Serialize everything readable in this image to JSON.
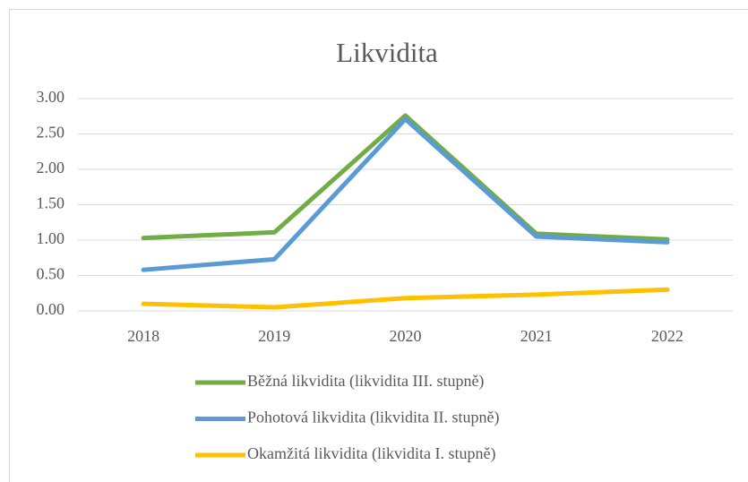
{
  "chart_data": {
    "type": "line",
    "title": "Likvidita",
    "categories": [
      "2018",
      "2019",
      "2020",
      "2021",
      "2022"
    ],
    "series": [
      {
        "name": "Běžná likvidita (likvidita III. stupně)",
        "color": "#70ad47",
        "values": [
          1.03,
          1.11,
          2.76,
          1.09,
          1.01
        ]
      },
      {
        "name": "Pohotová likvidita (likvidita II. stupně)",
        "color": "#5b9bd5",
        "values": [
          0.58,
          0.73,
          2.71,
          1.05,
          0.97
        ]
      },
      {
        "name": "Okamžitá likvidita (likvidita I. stupně)",
        "color": "#ffc000",
        "values": [
          0.1,
          0.05,
          0.18,
          0.23,
          0.3
        ]
      }
    ],
    "ylim": [
      0,
      3
    ],
    "yticks": [
      {
        "value": 0,
        "label": "0.00"
      },
      {
        "value": 0.5,
        "label": "0.50"
      },
      {
        "value": 1,
        "label": "1.00"
      },
      {
        "value": 1.5,
        "label": "1.50"
      },
      {
        "value": 2,
        "label": "2.00"
      },
      {
        "value": 2.5,
        "label": "2.50"
      },
      {
        "value": 3,
        "label": "3.00"
      }
    ],
    "grid": true,
    "legend": "bottom"
  }
}
